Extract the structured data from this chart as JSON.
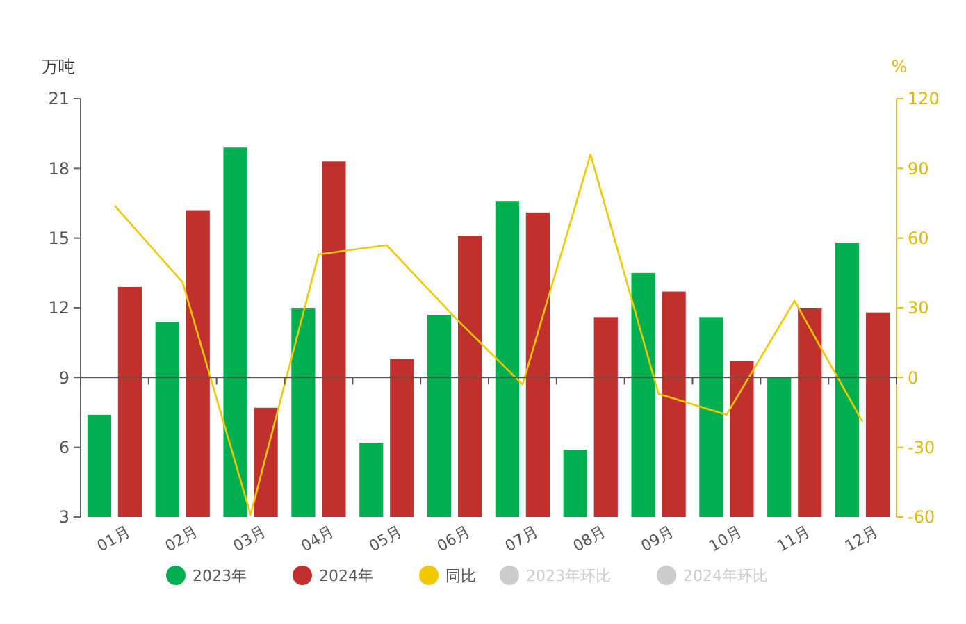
{
  "chart_data": {
    "type": "bar",
    "ylabel": "万吨",
    "y2label": "%",
    "categories": [
      "01月",
      "02月",
      "03月",
      "04月",
      "05月",
      "06月",
      "07月",
      "08月",
      "09月",
      "10月",
      "11月",
      "12月"
    ],
    "ylim": [
      3,
      21
    ],
    "yticks": [
      3,
      6,
      9,
      12,
      15,
      18,
      21
    ],
    "y2lim": [
      -60,
      120
    ],
    "y2ticks": [
      -60,
      -30,
      0,
      30,
      60,
      90,
      120
    ],
    "legend": "bottom",
    "series": [
      {
        "name": "2023年",
        "color": "#00b050",
        "values": [
          7.4,
          11.4,
          18.9,
          12.0,
          6.2,
          11.7,
          16.6,
          5.9,
          13.5,
          11.6,
          9.0,
          14.8
        ]
      },
      {
        "name": "2024年",
        "color": "#c0302c",
        "values": [
          12.9,
          16.2,
          7.7,
          18.3,
          9.8,
          15.1,
          16.1,
          11.6,
          12.7,
          9.7,
          12.0,
          11.8
        ]
      },
      {
        "name": "同比",
        "type": "line",
        "axis": "y2",
        "color": "#f0c800",
        "values": [
          74,
          41,
          -59,
          53,
          57,
          26,
          -3,
          96,
          -7,
          -16,
          33,
          -19
        ]
      },
      {
        "name": "2023年环比",
        "type": "line",
        "axis": "y2",
        "color": "#cccccc",
        "values": [
          null,
          null,
          null,
          null,
          null,
          null,
          null,
          null,
          null,
          null,
          null,
          null
        ]
      },
      {
        "name": "2024年环比",
        "type": "line",
        "axis": "y2",
        "color": "#cccccc",
        "values": [
          null,
          null,
          null,
          null,
          null,
          null,
          null,
          null,
          null,
          null,
          null,
          null
        ]
      }
    ]
  }
}
